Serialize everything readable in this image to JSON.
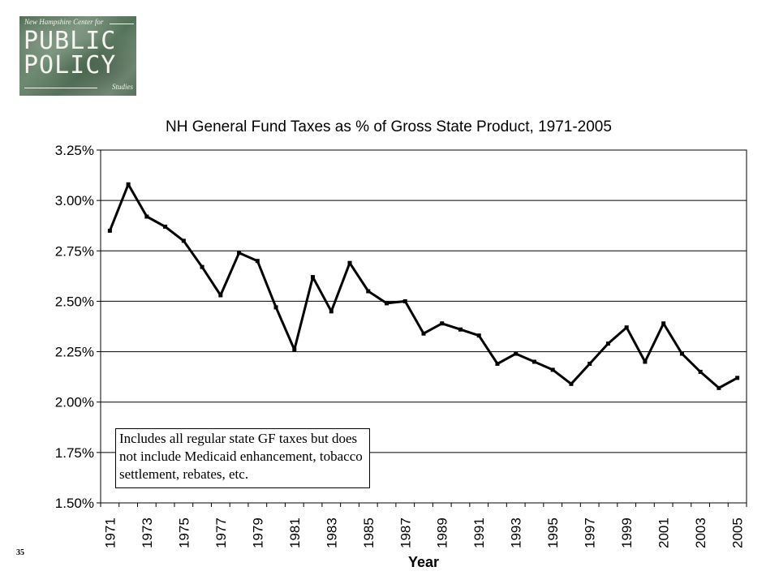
{
  "logo": {
    "top_text": "New Hampshire Center for",
    "word1": "PUBLIC",
    "word2": "POLICY",
    "bottom_text": "Studies"
  },
  "page_number": "35",
  "note": "Includes all regular state GF taxes but does not include Medicaid enhancement, tobacco settlement, rebates, etc.",
  "chart_data": {
    "type": "line",
    "title": "NH General Fund Taxes as % of Gross State Product, 1971-2005",
    "xlabel": "Year",
    "ylabel": "",
    "ylim": [
      1.5,
      3.25
    ],
    "y_ticks": [
      "3.25%",
      "3.00%",
      "2.75%",
      "2.50%",
      "2.25%",
      "2.00%",
      "1.75%",
      "1.50%"
    ],
    "y_tick_values": [
      3.25,
      3.0,
      2.75,
      2.5,
      2.25,
      2.0,
      1.75,
      1.5
    ],
    "x_tick_labels": [
      "1971",
      "1973",
      "1975",
      "1977",
      "1979",
      "1981",
      "1983",
      "1985",
      "1987",
      "1989",
      "1991",
      "1993",
      "1995",
      "1997",
      "1999",
      "2001",
      "2003",
      "2005"
    ],
    "grid": "horizontal",
    "line_color": "#000000",
    "x": [
      1971,
      1972,
      1973,
      1974,
      1975,
      1976,
      1977,
      1978,
      1979,
      1980,
      1981,
      1982,
      1983,
      1984,
      1985,
      1986,
      1987,
      1988,
      1989,
      1990,
      1991,
      1992,
      1993,
      1994,
      1995,
      1996,
      1997,
      1998,
      1999,
      2000,
      2001,
      2002,
      2003,
      2004,
      2005
    ],
    "values": [
      2.85,
      3.08,
      2.92,
      2.87,
      2.8,
      2.67,
      2.53,
      2.74,
      2.7,
      2.47,
      2.26,
      2.62,
      2.45,
      2.69,
      2.55,
      2.49,
      2.5,
      2.34,
      2.39,
      2.36,
      2.33,
      2.19,
      2.24,
      2.2,
      2.16,
      2.09,
      2.19,
      2.29,
      2.37,
      2.2,
      2.39,
      2.24,
      2.15,
      2.07,
      2.12
    ]
  }
}
